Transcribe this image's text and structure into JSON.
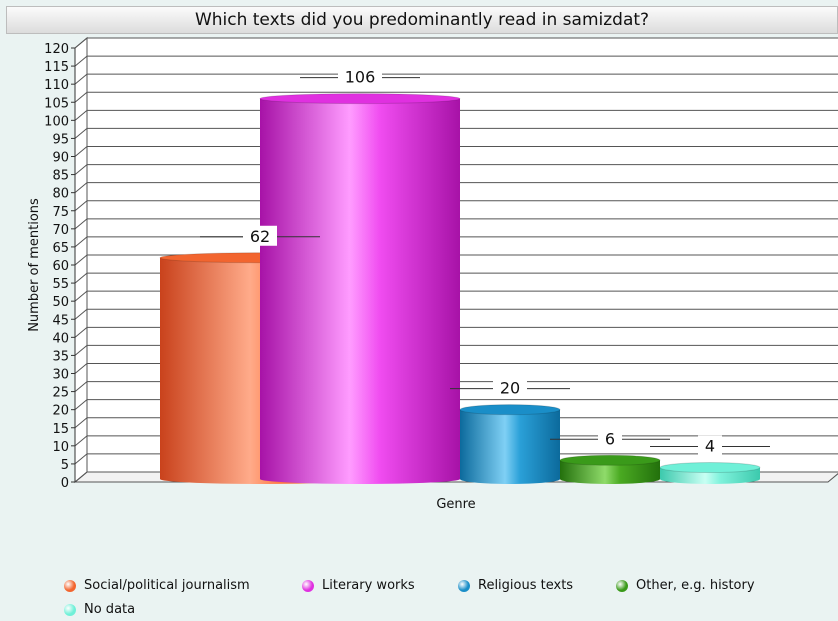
{
  "chart_data": {
    "type": "bar",
    "title": "Which texts did you predominantly read in samizdat?",
    "xlabel": "Genre",
    "ylabel": "Number of mentions",
    "ylim": [
      0,
      120
    ],
    "ytick_step": 5,
    "grid": true,
    "legend_position": "bottom",
    "series": [
      {
        "name": "Social/political journalism",
        "value": 62,
        "color": "#f2652f"
      },
      {
        "name": "Literary works",
        "value": 106,
        "color": "#e030e0"
      },
      {
        "name": "Religious texts",
        "value": 20,
        "color": "#1a8ec8"
      },
      {
        "name": "Other, e.g. history",
        "value": 6,
        "color": "#3a9a1a"
      },
      {
        "name": "No data",
        "value": 4,
        "color": "#70f0d8"
      }
    ]
  }
}
